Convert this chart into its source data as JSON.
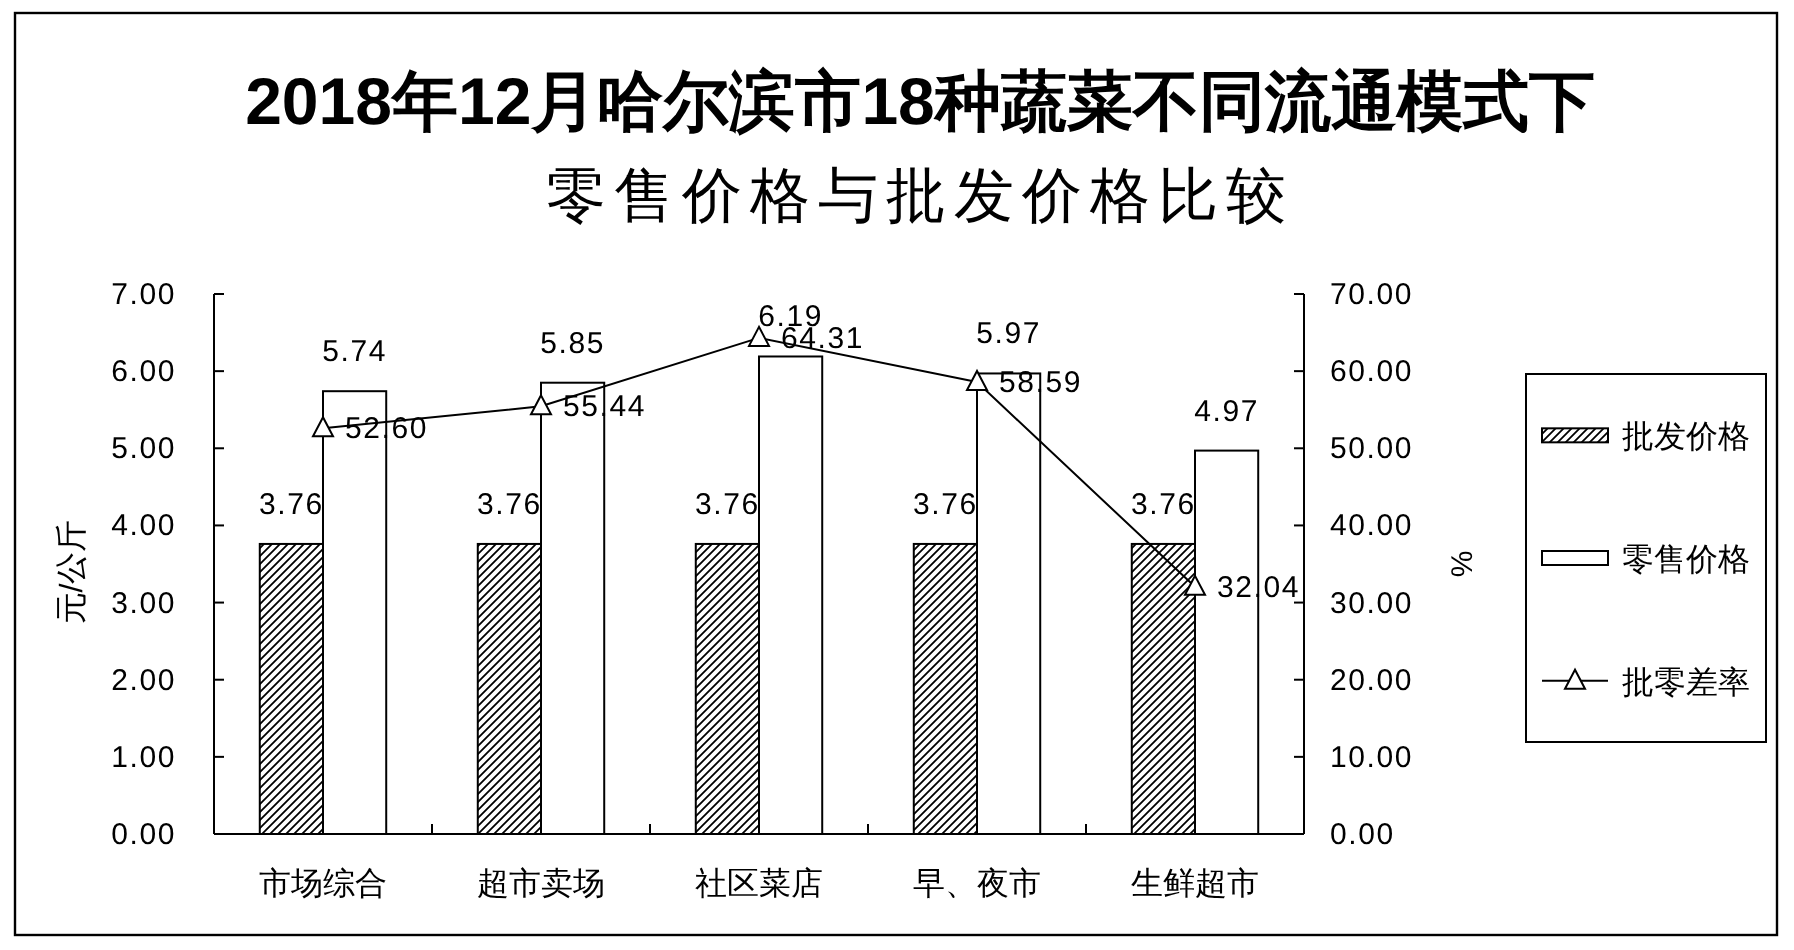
{
  "chart_data": {
    "type": "bar",
    "title": "2018年12月哈尔滨市18种蔬菜不同流通模式下",
    "subtitle": "零售价格与批发价格比较",
    "ylabel": "元/公斤",
    "y2label": "%",
    "categories": [
      "市场综合",
      "超市卖场",
      "社区菜店",
      "早、夜市",
      "生鲜超市"
    ],
    "series": [
      {
        "name": "批发价格",
        "color": "#000000",
        "values": [
          3.76,
          3.76,
          3.76,
          3.76,
          3.76
        ],
        "value_labels": [
          "3.76",
          "3.76",
          "3.76",
          "3.76",
          "3.76"
        ]
      },
      {
        "name": "零售价格",
        "color": "#ffffff",
        "values": [
          5.74,
          5.85,
          6.19,
          5.97,
          4.97
        ],
        "value_labels": [
          "5.74",
          "5.85",
          "6.19",
          "5.97",
          "4.97"
        ]
      },
      {
        "name": "批零差率",
        "type": "line",
        "axis": "y2",
        "color": "#000000",
        "values": [
          52.6,
          55.44,
          64.31,
          58.59,
          32.04
        ],
        "value_labels": [
          "52.60",
          "55.44",
          "64.31",
          "58.59",
          "32.04"
        ]
      }
    ],
    "ylim": [
      0,
      7
    ],
    "yticks": [
      {
        "value": 0,
        "label": "0.00"
      },
      {
        "value": 1,
        "label": "1.00"
      },
      {
        "value": 2,
        "label": "2.00"
      },
      {
        "value": 3,
        "label": "3.00"
      },
      {
        "value": 4,
        "label": "4.00"
      },
      {
        "value": 5,
        "label": "5.00"
      },
      {
        "value": 6,
        "label": "6.00"
      },
      {
        "value": 7,
        "label": "7.00"
      }
    ],
    "y2lim": [
      0,
      70
    ],
    "y2ticks": [
      {
        "value": 0,
        "label": "0.00"
      },
      {
        "value": 10,
        "label": "10.00"
      },
      {
        "value": 20,
        "label": "20.00"
      },
      {
        "value": 30,
        "label": "30.00"
      },
      {
        "value": 40,
        "label": "40.00"
      },
      {
        "value": 50,
        "label": "50.00"
      },
      {
        "value": 60,
        "label": "60.00"
      },
      {
        "value": 70,
        "label": "70.00"
      }
    ],
    "marker": "triangle",
    "legend": "right",
    "grid": false
  }
}
